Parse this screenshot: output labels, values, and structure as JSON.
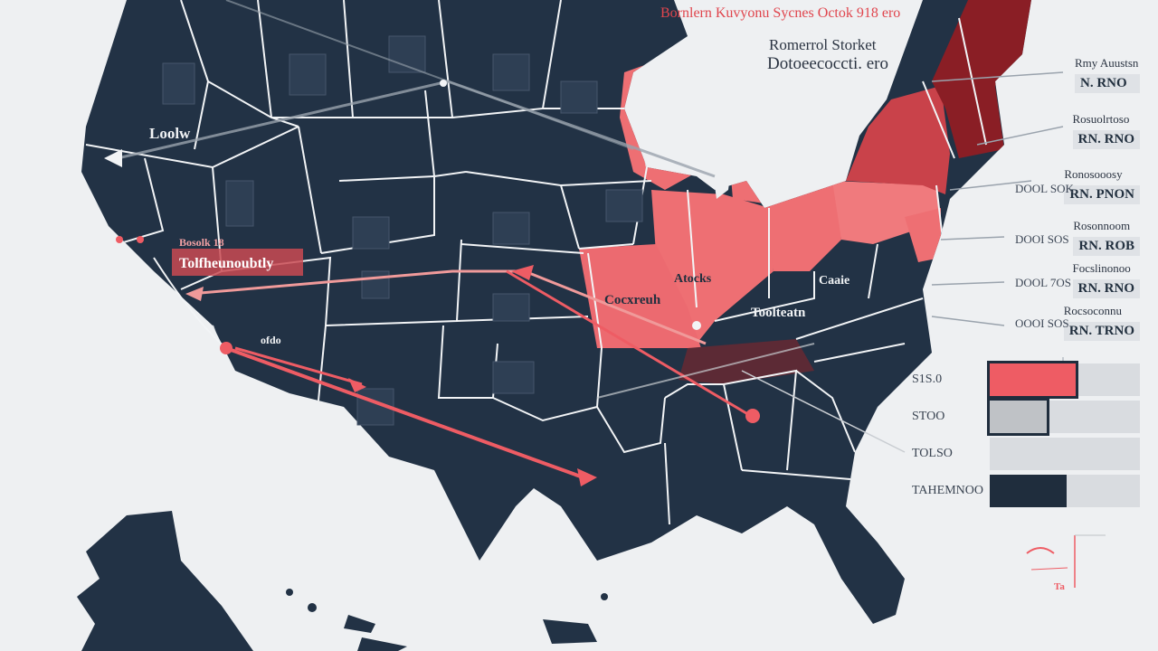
{
  "header": {
    "title": "Bornlern Kuvyonu Sycnes Octok 918 ero",
    "subtitle_line1": "Romerrol Storket",
    "subtitle_line2": "Dotoeecoccti. ero"
  },
  "map_labels": {
    "west": "Loolw",
    "california": "Bosolk 18",
    "california_banner": "Tolfheunoubtly",
    "nevada": "ofdo",
    "missouri": "Cocxreuh",
    "illinois": "Atocks",
    "virginia": "Caaie",
    "tennessee": "Toolteatn"
  },
  "legend": [
    {
      "label": "Rmy Auustsn",
      "value": "N. RNO"
    },
    {
      "label": "Rosuolrtoso",
      "value": "RN. RNO"
    },
    {
      "label": "Ronosooosy",
      "value": "RN. PNON"
    },
    {
      "label": "Rosonnoom",
      "value": "RN. ROB"
    },
    {
      "label": "Focslinonoo",
      "value": "RN. RNO"
    },
    {
      "label": "Rocsoconnu",
      "value": "RN. TRNO"
    }
  ],
  "mid_labels": [
    "DOOL SOK",
    "DOOI SOS",
    "DOOL 7OS",
    "OOOI SOS"
  ],
  "bar_chart": [
    {
      "label": "S1S.0",
      "value": 0.57,
      "color": "#ee5c64"
    },
    {
      "label": "STOO",
      "value": 0.38,
      "color": "#bfc2c6"
    },
    {
      "label": "TOLSO",
      "value": 0.0,
      "color": "#d9dce0"
    },
    {
      "label": "TAHEMNOO",
      "value": 0.51,
      "color": "#1f2d3d"
    }
  ],
  "footnote": "Ta",
  "colors": {
    "base": "#223245",
    "state_border": "#f2f4f6",
    "highlight_light": "#ee6f73",
    "highlight_mid": "#c9424a",
    "highlight_dark": "#8a1e25",
    "background": "#eef0f2"
  }
}
